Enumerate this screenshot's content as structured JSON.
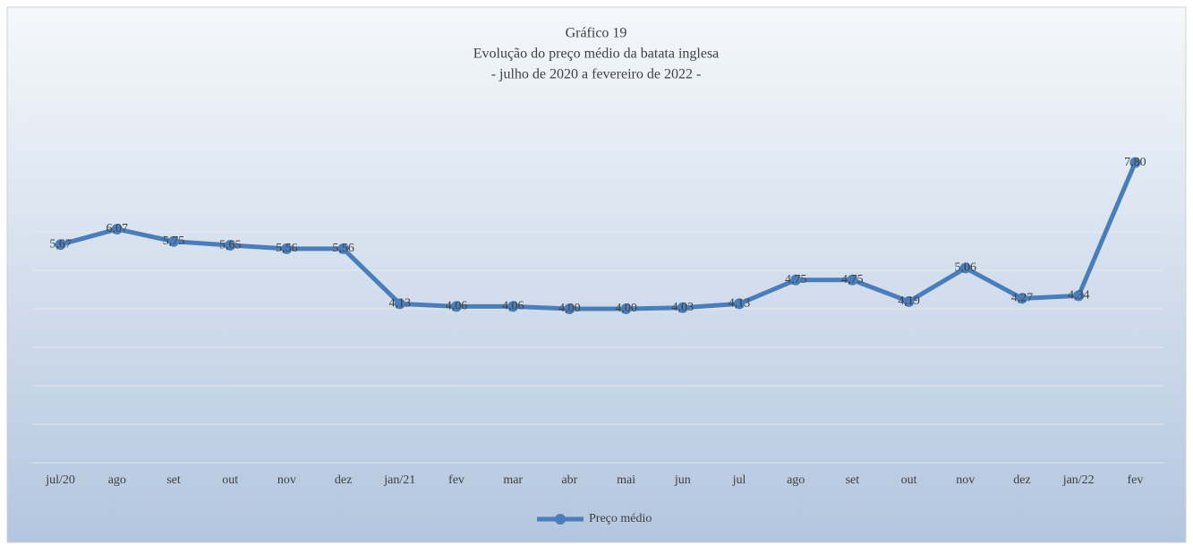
{
  "chart_data": {
    "type": "line",
    "title": "Gráfico 19",
    "subtitle": "Evolução do preço médio da batata inglesa",
    "subtitle2": "- julho de 2020 a fevereiro de 2022 -",
    "categories": [
      "jul/20",
      "ago",
      "set",
      "out",
      "nov",
      "dez",
      "jan/21",
      "fev",
      "mar",
      "abr",
      "mai",
      "jun",
      "jul",
      "ago",
      "set",
      "out",
      "nov",
      "dez",
      "jan/22",
      "fev"
    ],
    "series": [
      {
        "name": "Preço médio",
        "color": "#4a7ebb",
        "values": [
          5.67,
          6.07,
          5.75,
          5.65,
          5.56,
          5.56,
          4.13,
          4.06,
          4.06,
          4.0,
          4.0,
          4.03,
          4.13,
          4.75,
          4.75,
          4.19,
          5.06,
          4.27,
          4.34,
          7.8
        ],
        "value_labels": [
          "5,67",
          "6,07",
          "5,75",
          "5,65",
          "5,56",
          "5,56",
          "4,13",
          "4,06",
          "4,06",
          "4,00",
          "4,00",
          "4,03",
          "4,13",
          "4,75",
          "4,75",
          "4,19",
          "5,06",
          "4,27",
          "4,34",
          "7,80"
        ]
      }
    ],
    "ylim": [
      0,
      9
    ],
    "yticks": [
      0,
      1,
      2,
      3,
      4,
      5,
      6,
      7,
      8,
      9
    ],
    "grid": true,
    "legend": "bottom"
  }
}
